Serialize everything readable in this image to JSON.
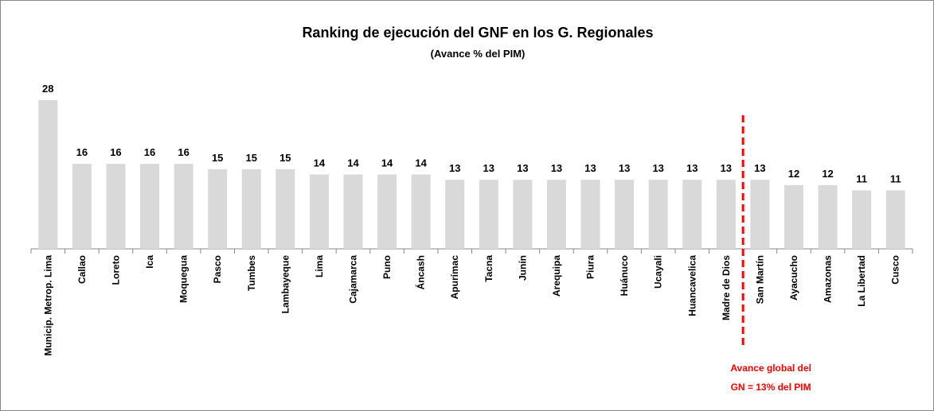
{
  "chart_data": {
    "type": "bar",
    "title": "Ranking de ejecución del GNF en los G. Regionales",
    "subtitle": "(Avance % del PIM)",
    "categories": [
      "Municip. Metrop. Lima",
      "Callao",
      "Loreto",
      "Ica",
      "Moquegua",
      "Pasco",
      "Tumbes",
      "Lambayeque",
      "Lima",
      "Cajamarca",
      "Puno",
      "Áncash",
      "Apurímac",
      "Tacna",
      "Junín",
      "Arequipa",
      "Piura",
      "Huánuco",
      "Ucayali",
      "Huancavelica",
      "Madre de Dios",
      "San Martín",
      "Ayacucho",
      "Amazonas",
      "La Libertad",
      "Cusco"
    ],
    "values": [
      28,
      16,
      16,
      16,
      16,
      15,
      15,
      15,
      14,
      14,
      14,
      14,
      13,
      13,
      13,
      13,
      13,
      13,
      13,
      13,
      13,
      13,
      12,
      12,
      11,
      11
    ],
    "color": "#d9d9d9",
    "annotation": [
      "Avance global del",
      "GN = 13% del PIM"
    ],
    "annotation_color": "#ff0000"
  }
}
